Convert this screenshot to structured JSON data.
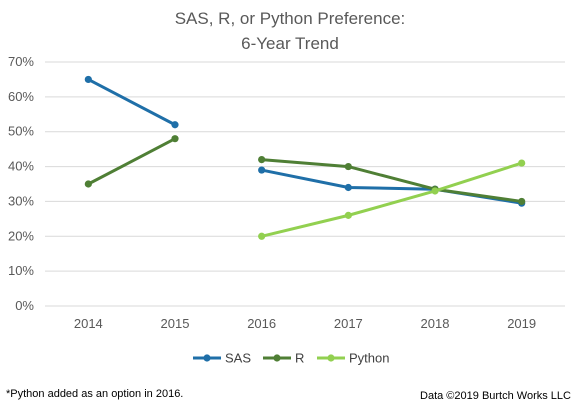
{
  "chart_data": {
    "type": "line",
    "title_line1": "SAS, R, or Python Preference:",
    "title_line2": "6-Year Trend",
    "categories": [
      "2014",
      "2015",
      "2016",
      "2017",
      "2018",
      "2019"
    ],
    "y_ticks": [
      "0%",
      "10%",
      "20%",
      "30%",
      "40%",
      "50%",
      "60%",
      "70%"
    ],
    "ylim": [
      0,
      70
    ],
    "grid": true,
    "legend_position": "bottom",
    "series": [
      {
        "name": "SAS",
        "color": "#1F6FA8",
        "values": [
          65,
          52,
          39,
          34,
          33.5,
          29.5
        ],
        "gap_after_index": 1
      },
      {
        "name": "R",
        "color": "#4F7F35",
        "values": [
          35,
          48,
          42,
          40,
          33.5,
          30
        ],
        "gap_after_index": 1
      },
      {
        "name": "Python",
        "color": "#92D050",
        "values": [
          null,
          null,
          20,
          26,
          33,
          41
        ]
      }
    ]
  },
  "footnote": "*Python added as an option in 2016.",
  "credit": "Data ©2019 Burtch Works LLC"
}
